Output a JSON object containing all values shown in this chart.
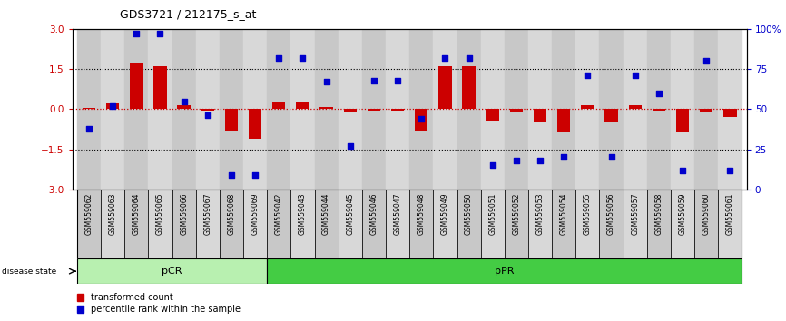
{
  "title": "GDS3721 / 212175_s_at",
  "samples": [
    "GSM559062",
    "GSM559063",
    "GSM559064",
    "GSM559065",
    "GSM559066",
    "GSM559067",
    "GSM559068",
    "GSM559069",
    "GSM559042",
    "GSM559043",
    "GSM559044",
    "GSM559045",
    "GSM559046",
    "GSM559047",
    "GSM559048",
    "GSM559049",
    "GSM559050",
    "GSM559051",
    "GSM559052",
    "GSM559053",
    "GSM559054",
    "GSM559055",
    "GSM559056",
    "GSM559057",
    "GSM559058",
    "GSM559059",
    "GSM559060",
    "GSM559061"
  ],
  "transformed_count": [
    0.03,
    0.22,
    1.72,
    1.62,
    0.15,
    -0.05,
    -0.85,
    -1.12,
    0.3,
    0.28,
    0.08,
    -0.08,
    -0.04,
    -0.04,
    -0.85,
    1.62,
    1.62,
    -0.42,
    -0.12,
    -0.5,
    -0.88,
    0.14,
    -0.48,
    0.14,
    -0.04,
    -0.88,
    -0.14,
    -0.28
  ],
  "percentile_rank": [
    38,
    52,
    97,
    97,
    55,
    46,
    9,
    9,
    82,
    82,
    67,
    27,
    68,
    68,
    44,
    82,
    82,
    15,
    18,
    18,
    20,
    71,
    20,
    71,
    60,
    12,
    80,
    12
  ],
  "pCR_count": 8,
  "bar_color": "#cc0000",
  "dot_color": "#0000cc",
  "pCR_color": "#b8f0b0",
  "pPR_color": "#44cc44",
  "col_bg_even": "#c8c8c8",
  "col_bg_odd": "#d8d8d8",
  "yticks_left": [
    -3,
    -1.5,
    0,
    1.5,
    3
  ],
  "yticks_right": [
    0,
    25,
    50,
    75,
    100
  ]
}
